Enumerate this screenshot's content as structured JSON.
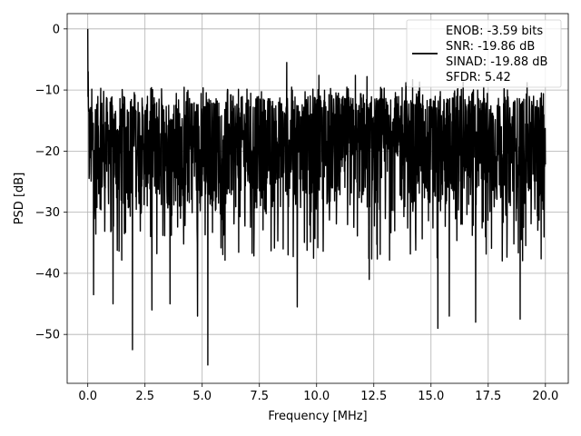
{
  "chart_data": {
    "type": "line",
    "title": "",
    "xlabel": "Frequency [MHz]",
    "ylabel": "PSD [dB]",
    "xlim": [
      -0.9,
      21.0
    ],
    "ylim": [
      -58,
      2.5
    ],
    "xticks": [
      0.0,
      2.5,
      5.0,
      7.5,
      10.0,
      12.5,
      15.0,
      17.5,
      20.0
    ],
    "xtick_labels": [
      "0.0",
      "2.5",
      "5.0",
      "7.5",
      "10.0",
      "12.5",
      "15.0",
      "17.5",
      "20.0"
    ],
    "yticks": [
      0,
      -10,
      -20,
      -30,
      -40,
      -50
    ],
    "ytick_labels": [
      "0",
      "−10",
      "−20",
      "−30",
      "−40",
      "−50"
    ],
    "grid": true,
    "legend_position": "top-right",
    "line_color": "#000000",
    "legend": {
      "lines": [
        "ENOB: -3.59 bits",
        "SNR: -19.86 dB",
        "SINAD: -19.88 dB",
        "SFDR: 5.42"
      ]
    },
    "series": [
      {
        "x_start": 0.0,
        "x_end": 20.0,
        "approx_points": 2048,
        "noise_floor_mean": -20,
        "upper_envelope": -11,
        "lower_envelope": -30,
        "peaks": [
          {
            "x": 0.0,
            "y": 0.0
          },
          {
            "x": 0.02,
            "y": -7
          },
          {
            "x": 0.05,
            "y": -13
          },
          {
            "x": 8.7,
            "y": -5.5
          },
          {
            "x": 10.1,
            "y": -7.6
          },
          {
            "x": 11.7,
            "y": -7.6
          },
          {
            "x": 12.2,
            "y": -7.8
          },
          {
            "x": 13.9,
            "y": -8.8
          },
          {
            "x": 14.2,
            "y": -8.3
          },
          {
            "x": 14.5,
            "y": -8.7
          },
          {
            "x": 16.4,
            "y": -8.7
          },
          {
            "x": 17.3,
            "y": -9.5
          },
          {
            "x": 19.2,
            "y": -8.8
          }
        ],
        "nulls": [
          {
            "x": 0.25,
            "y": -43.5
          },
          {
            "x": 1.1,
            "y": -45
          },
          {
            "x": 1.95,
            "y": -52.5
          },
          {
            "x": 2.8,
            "y": -46
          },
          {
            "x": 3.6,
            "y": -45
          },
          {
            "x": 4.8,
            "y": -47
          },
          {
            "x": 5.25,
            "y": -55
          },
          {
            "x": 9.15,
            "y": -45.5
          },
          {
            "x": 12.3,
            "y": -41
          },
          {
            "x": 15.3,
            "y": -49
          },
          {
            "x": 15.8,
            "y": -47
          },
          {
            "x": 16.95,
            "y": -48
          },
          {
            "x": 18.9,
            "y": -47.5
          }
        ]
      }
    ]
  }
}
